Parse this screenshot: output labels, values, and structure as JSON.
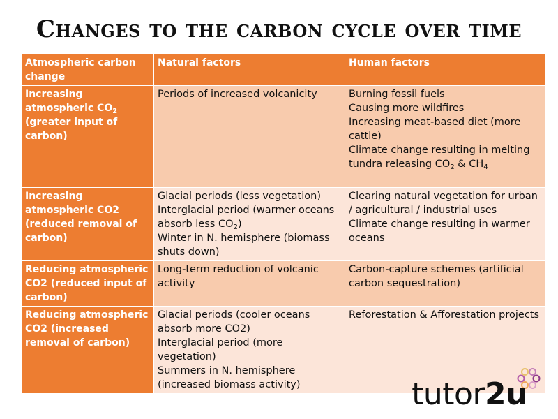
{
  "title": "Changes to the carbon cycle over time",
  "table": {
    "headers": [
      "Atmospheric carbon change",
      "Natural factors",
      "Human factors"
    ],
    "rows": [
      {
        "change": [
          "Increasing atmospheric CO",
          "2",
          " (greater input of carbon)"
        ],
        "natural": [
          "Periods of increased volcanicity"
        ],
        "human": [
          "Burning fossil fuels",
          "Causing more wildfires",
          "Increasing meat-based diet (more cattle)",
          "Climate change resulting in melting tundra releasing CO",
          "2",
          " & CH",
          "4"
        ]
      },
      {
        "change": [
          "Increasing atmospheric CO2 (reduced removal of carbon)"
        ],
        "natural": [
          "Glacial periods (less vegetation)",
          "Interglacial period (warmer oceans absorb less CO",
          "2",
          ")",
          "Winter in N. hemisphere (biomass shuts down)"
        ],
        "human": [
          "Clearing natural vegetation for urban / agricultural / industrial uses",
          "Climate change resulting in warmer oceans"
        ]
      },
      {
        "change": [
          "Reducing atmospheric CO2 (reduced input of carbon)"
        ],
        "natural": [
          "Long-term reduction of volcanic activity"
        ],
        "human": [
          "Carbon-capture schemes (artificial carbon sequestration)"
        ]
      },
      {
        "change": [
          "Reducing atmospheric CO2 (increased removal of carbon)"
        ],
        "natural": [
          "Glacial periods (cooler oceans absorb more CO2)",
          "Interglacial period (more vegetation)",
          "Summers in N. hemisphere (increased biomass activity)"
        ],
        "human": [
          "Reforestation & Afforestation projects"
        ]
      }
    ]
  },
  "logo": {
    "text_regular": "tutor",
    "text_bold": "2u",
    "flower_colors": [
      "#8e3a8a",
      "#d9a0c9",
      "#f2a65a",
      "#b35aa8",
      "#e8c06a",
      "#c47fb8"
    ]
  },
  "colors": {
    "header_orange": "#ed7d31",
    "row_light": "#fce5d9",
    "row_medium": "#f8cbad"
  }
}
